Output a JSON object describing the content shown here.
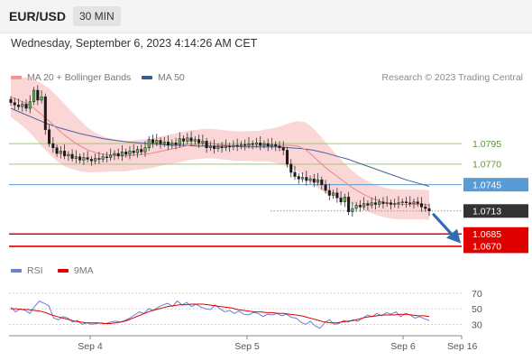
{
  "header": {
    "symbol": "EUR/USD",
    "timeframe": "30 MIN"
  },
  "datetime": "Wednesday, September 6, 2023 4:14:26 AM CET",
  "legend": {
    "ma20": "MA 20 + Bollinger Bands",
    "ma50": "MA 50",
    "rsi": "RSI",
    "ma9": "9MA",
    "credit": "Research © 2023 Trading Central"
  },
  "colors": {
    "bollinger": "#f6a3a3",
    "ma20": "#e58a8a",
    "ma50": "#4a5f9a",
    "resistance": "#9ccc65",
    "pivot": "#5b9bd5",
    "support": "#e00000",
    "current": "#333333",
    "rsi": "#6b7fd1",
    "rsi_ma": "#e00000",
    "arrow": "#2f6db5"
  },
  "chart_data": [
    {
      "type": "candlestick",
      "x_labels": [
        "Sep 4",
        "Sep 5",
        "Sep 6",
        "Sep 16"
      ],
      "ylim": [
        1.066,
        1.086
      ],
      "levels": [
        {
          "label": "1.0795",
          "value": 1.0795,
          "kind": "resistance"
        },
        {
          "label": "1.0770",
          "value": 1.077,
          "kind": "resistance"
        },
        {
          "label": "1.0745",
          "value": 1.0745,
          "kind": "pivot"
        },
        {
          "label": "1.0713",
          "value": 1.0713,
          "kind": "current"
        },
        {
          "label": "1.0685",
          "value": 1.0685,
          "kind": "support"
        },
        {
          "label": "1.0670",
          "value": 1.067,
          "kind": "support"
        }
      ],
      "close": [
        1.0845,
        1.0842,
        1.084,
        1.0843,
        1.0838,
        1.0846,
        1.086,
        1.0848,
        1.0852,
        1.0812,
        1.0795,
        1.079,
        1.0783,
        1.0786,
        1.078,
        1.0782,
        1.0777,
        1.0779,
        1.0775,
        1.0778,
        1.0776,
        1.0774,
        1.0777,
        1.0776,
        1.0779,
        1.0778,
        1.0781,
        1.0783,
        1.078,
        1.0785,
        1.0782,
        1.0786,
        1.0784,
        1.0788,
        1.0785,
        1.079,
        1.08,
        1.0796,
        1.0799,
        1.0795,
        1.0797,
        1.0793,
        1.0796,
        1.0794,
        1.0801,
        1.0798,
        1.0802,
        1.0798,
        1.08,
        1.0796,
        1.0798,
        1.079,
        1.0792,
        1.0789,
        1.0791,
        1.079,
        1.0792,
        1.0791,
        1.0793,
        1.0792,
        1.0794,
        1.0793,
        1.0795,
        1.0794,
        1.0796,
        1.0793,
        1.0795,
        1.0792,
        1.0794,
        1.0792,
        1.079,
        1.0787,
        1.077,
        1.076,
        1.0755,
        1.0752,
        1.0754,
        1.075,
        1.0752,
        1.0748,
        1.0751,
        1.0745,
        1.0738,
        1.0732,
        1.0735,
        1.0729,
        1.0724,
        1.073,
        1.0712,
        1.0716,
        1.072,
        1.0718,
        1.0722,
        1.072,
        1.0723,
        1.0721,
        1.0724,
        1.0722,
        1.0723,
        1.0721,
        1.0722,
        1.0723,
        1.0724,
        1.0723,
        1.0722,
        1.0724,
        1.0722,
        1.0718,
        1.0716,
        1.0713
      ],
      "ma20": [
        1.0852,
        1.0848,
        1.0844,
        1.0838,
        1.083,
        1.0822,
        1.0813,
        1.0805,
        1.0798,
        1.0792,
        1.0787,
        1.0784,
        1.0782,
        1.0781,
        1.078,
        1.078,
        1.0781,
        1.0782,
        1.0783,
        1.0785,
        1.0787,
        1.0789,
        1.0791,
        1.0793,
        1.0794,
        1.0795,
        1.0795,
        1.0794,
        1.0793,
        1.0792,
        1.0792,
        1.0792,
        1.0792,
        1.0793,
        1.0793,
        1.0793,
        1.0793,
        1.0792,
        1.0788,
        1.078,
        1.0771,
        1.0763,
        1.0756,
        1.0749,
        1.0742,
        1.0736,
        1.0731,
        1.0727,
        1.0724,
        1.0722,
        1.0721,
        1.0721,
        1.0721,
        1.0721,
        1.072
      ],
      "ma50": [
        1.0838,
        1.0832,
        1.0826,
        1.082,
        1.0815,
        1.0811,
        1.0807,
        1.0804,
        1.0801,
        1.0799,
        1.0797,
        1.0796,
        1.0795,
        1.0794,
        1.0793,
        1.0793,
        1.0792,
        1.0792,
        1.0792,
        1.0792,
        1.0791,
        1.0791,
        1.0791,
        1.0791,
        1.079,
        1.0789,
        1.0787,
        1.0784,
        1.078,
        1.0776,
        1.0771,
        1.0766,
        1.0761,
        1.0756,
        1.0751,
        1.0747,
        1.0743
      ]
    },
    {
      "type": "line",
      "name": "rsi-panel",
      "yticks": [
        70,
        50,
        30
      ],
      "ylim": [
        20,
        78
      ],
      "series": [
        {
          "name": "RSI",
          "values": [
            52,
            46,
            50,
            48,
            44,
            53,
            60,
            57,
            54,
            38,
            36,
            40,
            38,
            33,
            35,
            30,
            32,
            30,
            31,
            32,
            31,
            33,
            34,
            33,
            35,
            38,
            42,
            46,
            44,
            50,
            48,
            52,
            55,
            57,
            53,
            60,
            55,
            58,
            53,
            56,
            52,
            50,
            49,
            55,
            50,
            46,
            48,
            44,
            47,
            43,
            42,
            45,
            44,
            40,
            43,
            42,
            44,
            41,
            43,
            39,
            38,
            33,
            30,
            34,
            28,
            25,
            32,
            36,
            30,
            31,
            35,
            33,
            36,
            34,
            38,
            42,
            40,
            44,
            41,
            45,
            43,
            46,
            40,
            44,
            42,
            38,
            40,
            37,
            35
          ]
        },
        {
          "name": "9MA",
          "values": [
            50,
            50,
            49,
            49,
            48,
            47,
            45,
            42,
            40,
            38,
            36,
            34,
            33,
            32,
            32,
            32,
            31,
            31,
            32,
            33,
            35,
            38,
            41,
            44,
            47,
            49,
            51,
            53,
            54,
            55,
            55,
            56,
            56,
            56,
            55,
            54,
            53,
            52,
            51,
            49,
            48,
            47,
            46,
            46,
            45,
            45,
            44,
            44,
            43,
            42,
            41,
            39,
            37,
            35,
            33,
            32,
            32,
            33,
            34,
            35,
            37,
            39,
            40,
            41,
            42,
            42,
            42,
            43,
            43,
            42,
            41,
            41,
            40
          ]
        }
      ]
    }
  ]
}
